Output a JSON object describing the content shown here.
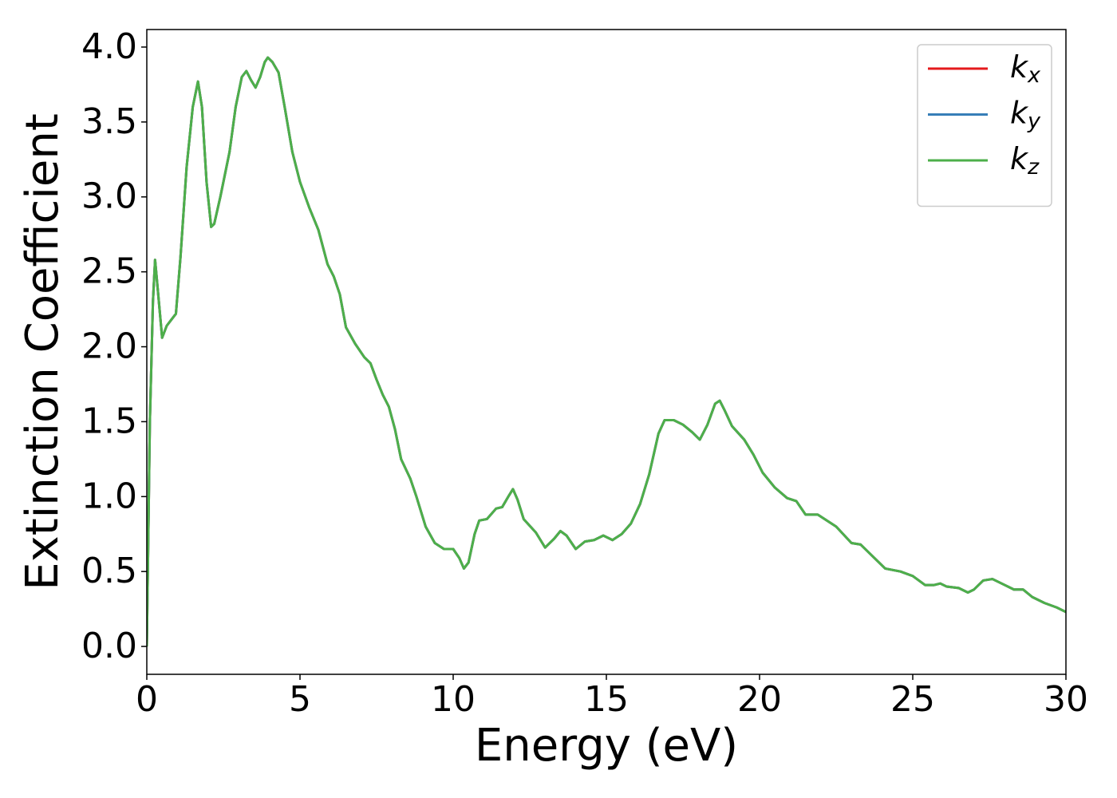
{
  "chart_data": {
    "type": "line",
    "xlabel": "Energy (eV)",
    "ylabel": "Extinction Coefficient",
    "x": [
      0,
      0.1,
      0.2,
      0.27,
      0.35,
      0.5,
      0.65,
      0.8,
      0.95,
      1.1,
      1.3,
      1.5,
      1.67,
      1.8,
      1.95,
      2.1,
      2.2,
      2.4,
      2.7,
      2.9,
      3.1,
      3.25,
      3.4,
      3.55,
      3.7,
      3.85,
      3.95,
      4.1,
      4.3,
      4.5,
      4.75,
      5.0,
      5.3,
      5.6,
      5.9,
      6.1,
      6.3,
      6.5,
      6.8,
      7.1,
      7.3,
      7.5,
      7.7,
      7.9,
      8.1,
      8.3,
      8.6,
      8.8,
      9.1,
      9.4,
      9.7,
      10.0,
      10.2,
      10.35,
      10.5,
      10.7,
      10.85,
      11.1,
      11.4,
      11.6,
      11.8,
      11.95,
      12.1,
      12.3,
      12.7,
      13.0,
      13.3,
      13.5,
      13.7,
      14.0,
      14.3,
      14.6,
      14.9,
      15.2,
      15.5,
      15.8,
      16.1,
      16.4,
      16.7,
      16.9,
      17.2,
      17.5,
      17.8,
      18.05,
      18.3,
      18.55,
      18.7,
      18.85,
      19.1,
      19.5,
      19.8,
      20.1,
      20.5,
      20.9,
      21.2,
      21.5,
      21.9,
      22.5,
      23.0,
      23.3,
      23.7,
      24.1,
      24.6,
      25.0,
      25.4,
      25.7,
      25.9,
      26.1,
      26.5,
      26.8,
      27.0,
      27.3,
      27.6,
      28.0,
      28.3,
      28.6,
      28.9,
      29.3,
      29.7,
      30.0
    ],
    "series": [
      {
        "name": "kx",
        "color": "#e41a1c",
        "values": [
          0,
          1.5,
          2.3,
          2.58,
          2.4,
          2.06,
          2.14,
          2.18,
          2.22,
          2.6,
          3.2,
          3.6,
          3.77,
          3.6,
          3.1,
          2.8,
          2.82,
          3.0,
          3.3,
          3.6,
          3.8,
          3.84,
          3.78,
          3.73,
          3.8,
          3.9,
          3.93,
          3.9,
          3.83,
          3.6,
          3.3,
          3.1,
          2.93,
          2.78,
          2.55,
          2.47,
          2.35,
          2.13,
          2.02,
          1.93,
          1.89,
          1.78,
          1.68,
          1.6,
          1.45,
          1.25,
          1.12,
          1.0,
          0.8,
          0.69,
          0.65,
          0.65,
          0.59,
          0.52,
          0.56,
          0.75,
          0.84,
          0.85,
          0.92,
          0.93,
          1.0,
          1.05,
          0.98,
          0.85,
          0.76,
          0.66,
          0.72,
          0.77,
          0.74,
          0.65,
          0.7,
          0.71,
          0.74,
          0.71,
          0.75,
          0.82,
          0.95,
          1.15,
          1.42,
          1.51,
          1.51,
          1.48,
          1.43,
          1.38,
          1.48,
          1.62,
          1.64,
          1.58,
          1.47,
          1.38,
          1.28,
          1.16,
          1.06,
          0.99,
          0.97,
          0.88,
          0.88,
          0.8,
          0.69,
          0.68,
          0.6,
          0.52,
          0.5,
          0.47,
          0.41,
          0.41,
          0.42,
          0.4,
          0.39,
          0.36,
          0.38,
          0.44,
          0.45,
          0.41,
          0.38,
          0.38,
          0.33,
          0.29,
          0.26,
          0.23
        ]
      },
      {
        "name": "ky",
        "color": "#377eb8",
        "values": [
          0,
          1.5,
          2.3,
          2.58,
          2.4,
          2.06,
          2.14,
          2.18,
          2.22,
          2.6,
          3.2,
          3.6,
          3.77,
          3.6,
          3.1,
          2.8,
          2.82,
          3.0,
          3.3,
          3.6,
          3.8,
          3.84,
          3.78,
          3.73,
          3.8,
          3.9,
          3.93,
          3.9,
          3.83,
          3.6,
          3.3,
          3.1,
          2.93,
          2.78,
          2.55,
          2.47,
          2.35,
          2.13,
          2.02,
          1.93,
          1.89,
          1.78,
          1.68,
          1.6,
          1.45,
          1.25,
          1.12,
          1.0,
          0.8,
          0.69,
          0.65,
          0.65,
          0.59,
          0.52,
          0.56,
          0.75,
          0.84,
          0.85,
          0.92,
          0.93,
          1.0,
          1.05,
          0.98,
          0.85,
          0.76,
          0.66,
          0.72,
          0.77,
          0.74,
          0.65,
          0.7,
          0.71,
          0.74,
          0.71,
          0.75,
          0.82,
          0.95,
          1.15,
          1.42,
          1.51,
          1.51,
          1.48,
          1.43,
          1.38,
          1.48,
          1.62,
          1.64,
          1.58,
          1.47,
          1.38,
          1.28,
          1.16,
          1.06,
          0.99,
          0.97,
          0.88,
          0.88,
          0.8,
          0.69,
          0.68,
          0.6,
          0.52,
          0.5,
          0.47,
          0.41,
          0.41,
          0.42,
          0.4,
          0.39,
          0.36,
          0.38,
          0.44,
          0.45,
          0.41,
          0.38,
          0.38,
          0.33,
          0.29,
          0.26,
          0.23
        ]
      },
      {
        "name": "kz",
        "color": "#4daf4a",
        "values": [
          0,
          1.5,
          2.3,
          2.58,
          2.4,
          2.06,
          2.14,
          2.18,
          2.22,
          2.6,
          3.2,
          3.6,
          3.77,
          3.6,
          3.1,
          2.8,
          2.82,
          3.0,
          3.3,
          3.6,
          3.8,
          3.84,
          3.78,
          3.73,
          3.8,
          3.9,
          3.93,
          3.9,
          3.83,
          3.6,
          3.3,
          3.1,
          2.93,
          2.78,
          2.55,
          2.47,
          2.35,
          2.13,
          2.02,
          1.93,
          1.89,
          1.78,
          1.68,
          1.6,
          1.45,
          1.25,
          1.12,
          1.0,
          0.8,
          0.69,
          0.65,
          0.65,
          0.59,
          0.52,
          0.56,
          0.75,
          0.84,
          0.85,
          0.92,
          0.93,
          1.0,
          1.05,
          0.98,
          0.85,
          0.76,
          0.66,
          0.72,
          0.77,
          0.74,
          0.65,
          0.7,
          0.71,
          0.74,
          0.71,
          0.75,
          0.82,
          0.95,
          1.15,
          1.42,
          1.51,
          1.51,
          1.48,
          1.43,
          1.38,
          1.48,
          1.62,
          1.64,
          1.58,
          1.47,
          1.38,
          1.28,
          1.16,
          1.06,
          0.99,
          0.97,
          0.88,
          0.88,
          0.8,
          0.69,
          0.68,
          0.6,
          0.52,
          0.5,
          0.47,
          0.41,
          0.41,
          0.42,
          0.4,
          0.39,
          0.36,
          0.38,
          0.44,
          0.45,
          0.41,
          0.38,
          0.38,
          0.33,
          0.29,
          0.26,
          0.23
        ]
      }
    ],
    "xlim": [
      0,
      30
    ],
    "xticks": [
      0,
      5,
      10,
      15,
      20,
      25,
      30
    ],
    "ylim": [
      -0.186,
      4.117
    ],
    "yticks": [
      {
        "value": 0,
        "label": "0.0"
      },
      0.5,
      {
        "value": 1,
        "label": "1.0"
      },
      1.5,
      {
        "value": 2,
        "label": "2.0"
      },
      2.5,
      {
        "value": 3,
        "label": "3.0"
      },
      3.5,
      {
        "value": 4,
        "label": "4.0"
      }
    ],
    "legend": "upper right"
  }
}
